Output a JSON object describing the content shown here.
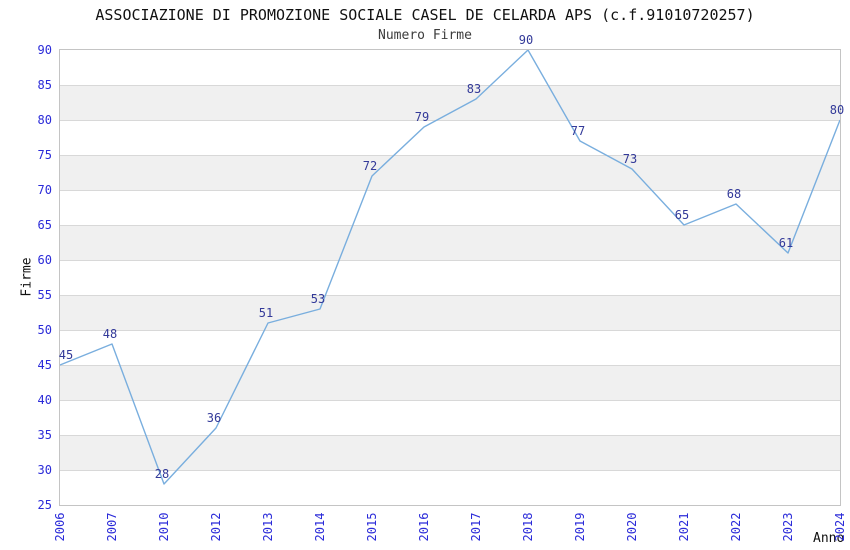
{
  "chart": {
    "title": "ASSOCIAZIONE DI PROMOZIONE SOCIALE CASEL DE CELARDA APS (c.f.91010720257)",
    "subtitle": "Numero Firme",
    "ylabel": "Firme",
    "xlabel": "Anno"
  },
  "chart_data": {
    "type": "line",
    "x": [
      "2006",
      "2007",
      "2010",
      "2012",
      "2013",
      "2014",
      "2015",
      "2016",
      "2017",
      "2018",
      "2019",
      "2020",
      "2021",
      "2022",
      "2023",
      "2024"
    ],
    "series": [
      {
        "name": "Numero Firme",
        "values": [
          45,
          48,
          28,
          36,
          51,
          53,
          72,
          79,
          83,
          90,
          77,
          73,
          65,
          68,
          61,
          80
        ]
      }
    ],
    "title": "Numero Firme",
    "xlabel": "Anno",
    "ylabel": "Firme",
    "ylim": [
      25,
      90
    ],
    "ytick_step": 5,
    "yticks": [
      25,
      30,
      35,
      40,
      45,
      50,
      55,
      60,
      65,
      70,
      75,
      80,
      85,
      90
    ],
    "grid": "horizontal-bands-alternating",
    "legend_position": "none",
    "data_labels_visible": true,
    "colors": {
      "line": "#79aede",
      "data_label": "#333a99",
      "tick_label": "#2b2bd9",
      "band_fill": "#f0f0f0",
      "grid_line": "#d8d8d8",
      "plot_border": "#c4c4c4"
    }
  }
}
